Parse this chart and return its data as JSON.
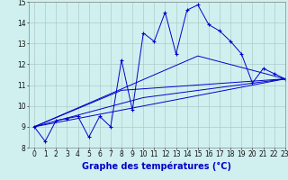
{
  "background_color": "#d0f0f0",
  "grid_color": "#b0c8c8",
  "line_color": "#0000cc",
  "xlabel": "Graphe des températures (°C)",
  "xlabel_fontsize": 7,
  "ylim": [
    8,
    15
  ],
  "xlim": [
    -0.5,
    23
  ],
  "yticks": [
    8,
    9,
    10,
    11,
    12,
    13,
    14,
    15
  ],
  "xticks": [
    0,
    1,
    2,
    3,
    4,
    5,
    6,
    7,
    8,
    9,
    10,
    11,
    12,
    13,
    14,
    15,
    16,
    17,
    18,
    19,
    20,
    21,
    22,
    23
  ],
  "series1_x": [
    0,
    1,
    2,
    3,
    4,
    5,
    6,
    7,
    8,
    9,
    10,
    11,
    12,
    13,
    14,
    15,
    16,
    17,
    18,
    19,
    20,
    21,
    22,
    23
  ],
  "series1_y": [
    9.0,
    8.3,
    9.3,
    9.4,
    9.5,
    8.5,
    9.5,
    9.0,
    12.2,
    9.8,
    13.5,
    13.1,
    14.5,
    12.5,
    14.6,
    14.85,
    13.9,
    13.6,
    13.1,
    12.5,
    11.1,
    11.8,
    11.55,
    11.3
  ],
  "series2_x": [
    0,
    23
  ],
  "series2_y": [
    9.0,
    11.3
  ],
  "series3_x": [
    0,
    10,
    23
  ],
  "series3_y": [
    9.0,
    10.4,
    11.3
  ],
  "series4_x": [
    0,
    8,
    23
  ],
  "series4_y": [
    9.0,
    10.75,
    11.3
  ],
  "series5_x": [
    0,
    15,
    23
  ],
  "series5_y": [
    9.0,
    12.4,
    11.3
  ],
  "tick_fontsize": 5.5
}
